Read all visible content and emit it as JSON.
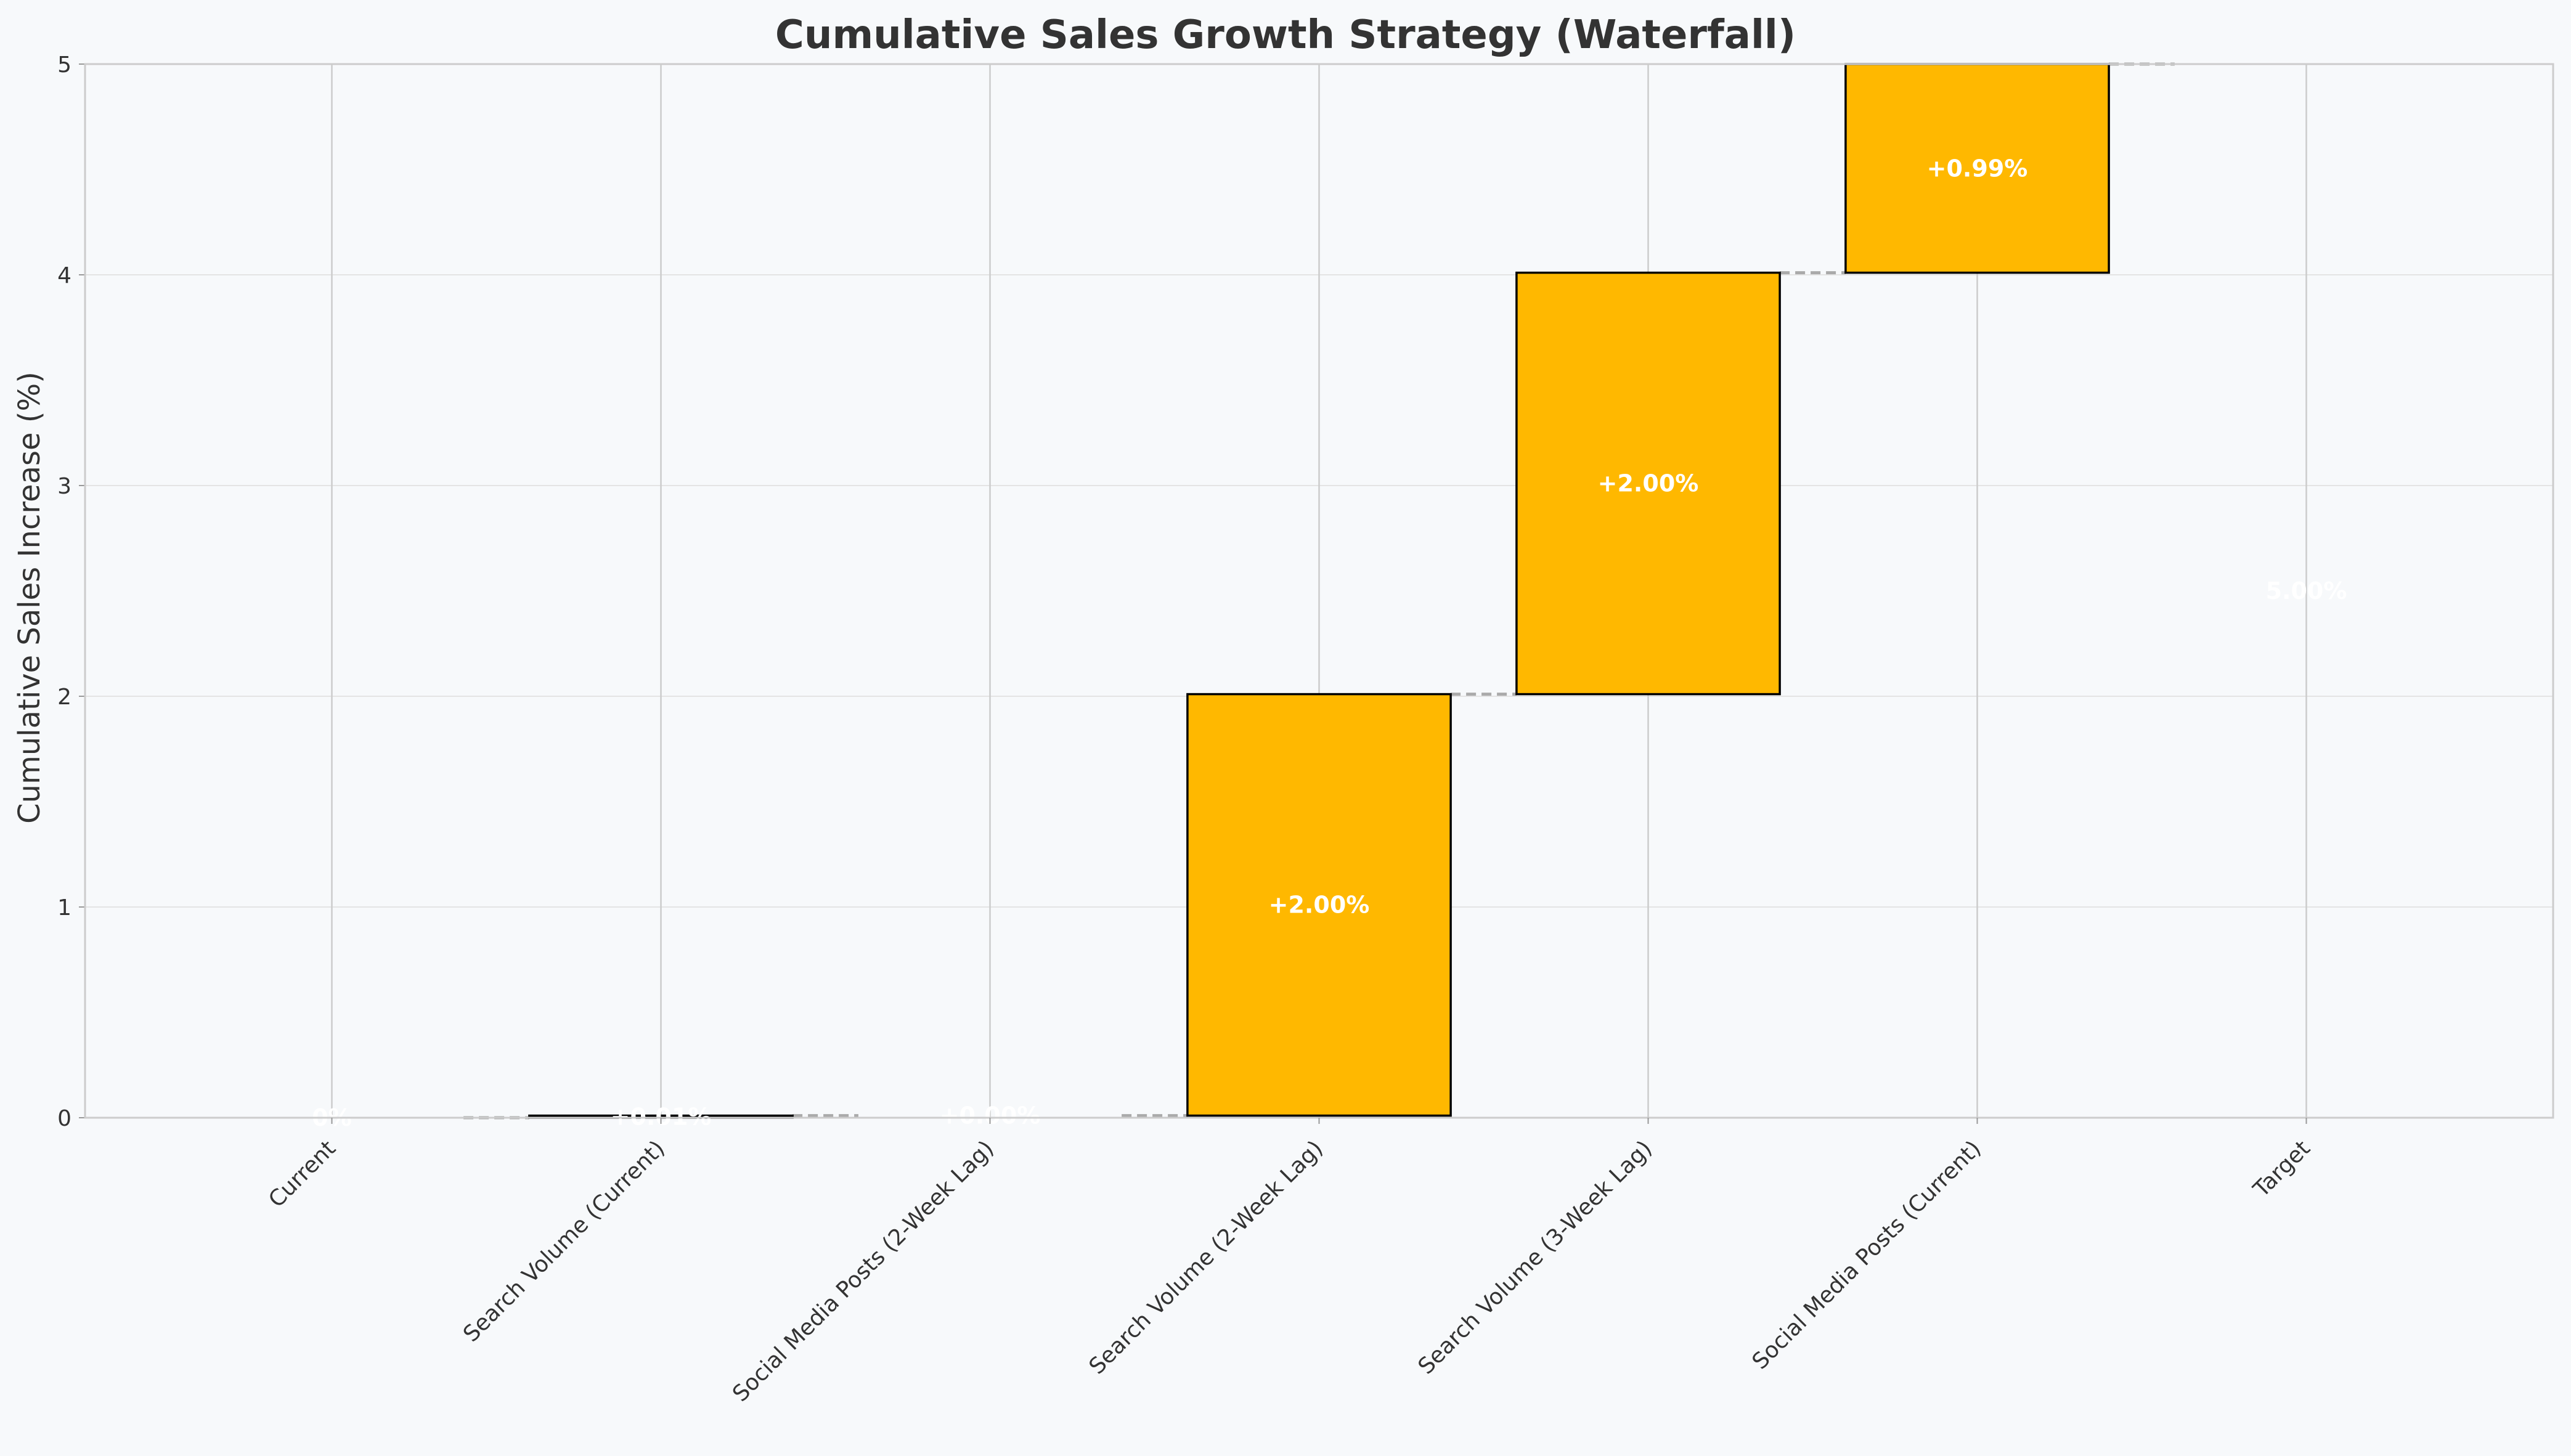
{
  "chart_data": {
    "type": "bar",
    "subtype": "waterfall",
    "title": "Cumulative Sales Growth Strategy (Waterfall)",
    "xlabel": "",
    "ylabel": "Cumulative Sales Increase (%)",
    "ylim": [
      0,
      5
    ],
    "yticks": [
      "0",
      "1",
      "2",
      "3",
      "4",
      "5"
    ],
    "categories": [
      "Current",
      "Search Volume (Current)",
      "Social Media Posts (2-Week Lag)",
      "Search Volume (2-Week Lag)",
      "Search Volume (3-Week Lag)",
      "Social Media Posts (Current)",
      "Target"
    ],
    "steps": [
      {
        "category": "Current",
        "kind": "total",
        "value": 0.0,
        "label": "0%"
      },
      {
        "category": "Search Volume (Current)",
        "kind": "increase",
        "value": 0.01,
        "label": "+0.01%"
      },
      {
        "category": "Social Media Posts (2-Week Lag)",
        "kind": "increase",
        "value": 0.0,
        "label": "+0.00%"
      },
      {
        "category": "Search Volume (2-Week Lag)",
        "kind": "increase",
        "value": 2.0,
        "label": "+2.00%"
      },
      {
        "category": "Search Volume (3-Week Lag)",
        "kind": "increase",
        "value": 2.0,
        "label": "+2.00%"
      },
      {
        "category": "Social Media Posts (Current)",
        "kind": "increase",
        "value": 0.99,
        "label": "+0.99%"
      },
      {
        "category": "Target",
        "kind": "total",
        "value": 5.0,
        "label": "5.00%"
      }
    ],
    "grid": true,
    "colors": {
      "increase": "#FFB800",
      "edge": "#000000",
      "connector": "#aaaaaa",
      "grid": "#cccccc",
      "background": "#f7f9fb",
      "label": "#ffffff"
    }
  }
}
